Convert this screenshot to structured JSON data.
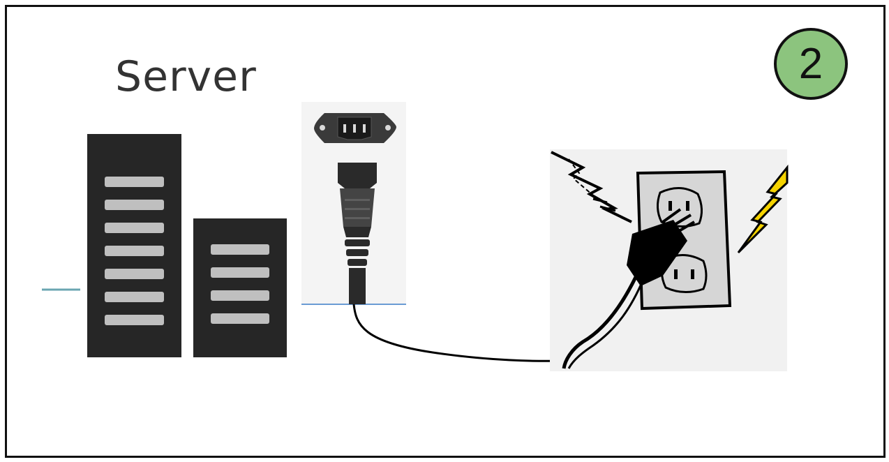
{
  "diagram": {
    "server_label": "Server",
    "step_number": "2"
  },
  "colors": {
    "frame": "#111111",
    "server_body": "#262626",
    "server_slot": "#bfbfbf",
    "badge_fill": "#8cc47e",
    "connector": "#6aa6b1",
    "lightning": "#f5d300"
  },
  "icons": [
    "server-rack-icon",
    "power-connector-icon",
    "power-cable-icon",
    "wall-outlet-icon",
    "lightning-icon"
  ]
}
